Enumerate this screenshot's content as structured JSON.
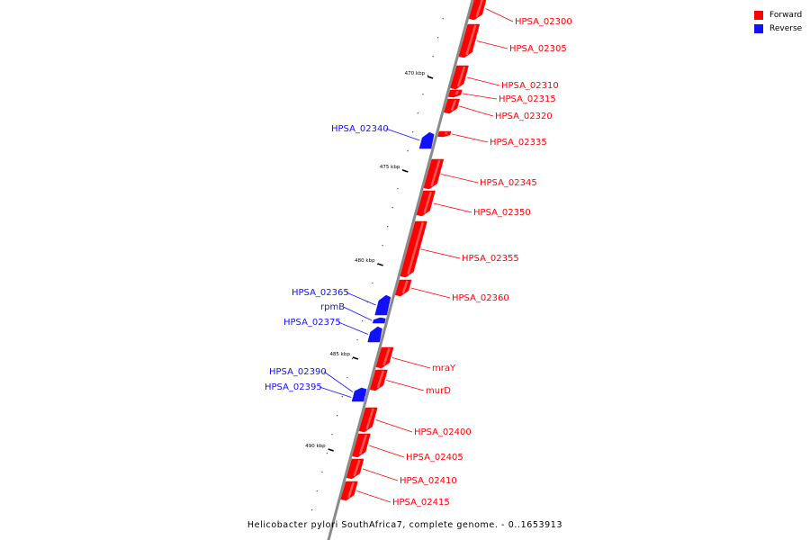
{
  "legend": {
    "forward_label": "Forward",
    "reverse_label": "Reverse",
    "forward_color": "#ff0000",
    "reverse_color": "#1010ff"
  },
  "caption": "Helicobacter pylori SouthAfrica7, complete genome. - 0..1653913",
  "scale_unit": "kbp",
  "ticks": [
    "470 kbp",
    "475 kbp",
    "480 kbp",
    "485 kbp",
    "490 kbp"
  ],
  "genes": [
    {
      "name": "HPSA_02300",
      "strand": "forward"
    },
    {
      "name": "HPSA_02305",
      "strand": "forward"
    },
    {
      "name": "HPSA_02310",
      "strand": "forward"
    },
    {
      "name": "HPSA_02315",
      "strand": "forward"
    },
    {
      "name": "HPSA_02320",
      "strand": "forward"
    },
    {
      "name": "HPSA_02335",
      "strand": "forward"
    },
    {
      "name": "HPSA_02340",
      "strand": "reverse"
    },
    {
      "name": "HPSA_02345",
      "strand": "forward"
    },
    {
      "name": "HPSA_02350",
      "strand": "forward"
    },
    {
      "name": "HPSA_02355",
      "strand": "forward"
    },
    {
      "name": "HPSA_02360",
      "strand": "forward"
    },
    {
      "name": "HPSA_02365",
      "strand": "reverse"
    },
    {
      "name": "rpmB",
      "strand": "reverse"
    },
    {
      "name": "HPSA_02375",
      "strand": "reverse"
    },
    {
      "name": "mraY",
      "strand": "forward"
    },
    {
      "name": "murD",
      "strand": "forward"
    },
    {
      "name": "HPSA_02390",
      "strand": "reverse"
    },
    {
      "name": "HPSA_02395",
      "strand": "reverse"
    },
    {
      "name": "HPSA_02400",
      "strand": "forward"
    },
    {
      "name": "HPSA_02405",
      "strand": "forward"
    },
    {
      "name": "HPSA_02410",
      "strand": "forward"
    },
    {
      "name": "HPSA_02415",
      "strand": "forward"
    }
  ]
}
